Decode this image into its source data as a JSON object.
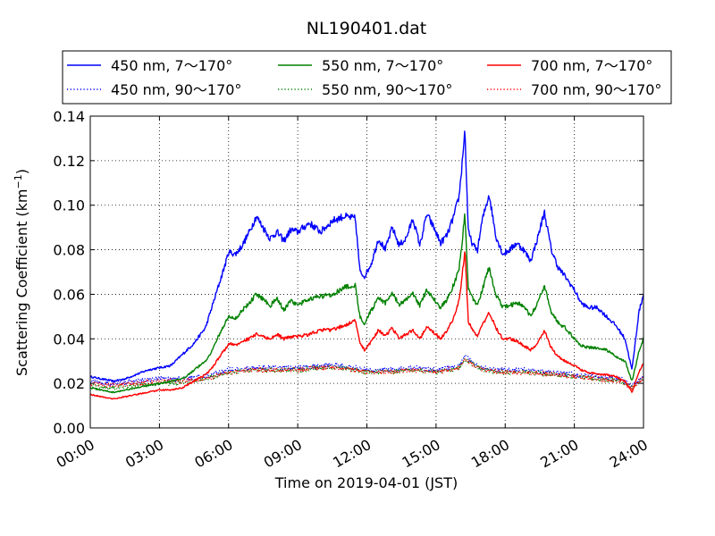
{
  "chart_data": {
    "type": "line",
    "title": "NL190401.dat",
    "xlabel": "Time on 2019-04-01 (JST)",
    "ylabel_main": "Scattering Coefficient (km",
    "ylabel_sup": "−1",
    "ylabel_end": ")",
    "xlim": [
      0,
      24
    ],
    "ylim": [
      0,
      0.14
    ],
    "xticks": [
      0,
      3,
      6,
      9,
      12,
      15,
      18,
      21,
      24
    ],
    "xtick_labels": [
      "00:00",
      "03:00",
      "06:00",
      "09:00",
      "12:00",
      "15:00",
      "18:00",
      "21:00",
      "24:00"
    ],
    "yticks": [
      0,
      0.02,
      0.04,
      0.06,
      0.08,
      0.1,
      0.12,
      0.14
    ],
    "ytick_labels": [
      "0.00",
      "0.02",
      "0.04",
      "0.06",
      "0.08",
      "0.10",
      "0.12",
      "0.14"
    ],
    "grid": true,
    "legend_position": "top-center",
    "legend_columns": 3,
    "series": [
      {
        "name": "450 nm, 7～170°",
        "color": "#0000ff",
        "style": "solid",
        "x": [
          0,
          0.5,
          1,
          1.5,
          2,
          2.5,
          3,
          3.5,
          4,
          4.5,
          5,
          5.3,
          5.6,
          5.9,
          6,
          6.3,
          6.6,
          6.9,
          7.2,
          7.5,
          7.8,
          8.1,
          8.4,
          8.7,
          9,
          9.5,
          10,
          10.5,
          11,
          11.5,
          11.7,
          11.9,
          12.2,
          12.5,
          12.8,
          13.1,
          13.4,
          13.7,
          14,
          14.3,
          14.6,
          14.9,
          15.2,
          15.5,
          15.8,
          16,
          16.1,
          16.25,
          16.4,
          16.6,
          16.8,
          17,
          17.3,
          17.6,
          17.9,
          18.2,
          18.5,
          18.8,
          19.1,
          19.4,
          19.7,
          20,
          20.3,
          20.6,
          21,
          21.3,
          21.6,
          22,
          22.4,
          22.8,
          23.2,
          23.5,
          23.8,
          24
        ],
        "values": [
          0.023,
          0.022,
          0.021,
          0.022,
          0.024,
          0.026,
          0.027,
          0.028,
          0.033,
          0.038,
          0.045,
          0.055,
          0.065,
          0.075,
          0.079,
          0.078,
          0.082,
          0.088,
          0.095,
          0.09,
          0.085,
          0.088,
          0.084,
          0.089,
          0.088,
          0.092,
          0.088,
          0.093,
          0.095,
          0.094,
          0.07,
          0.068,
          0.074,
          0.085,
          0.08,
          0.09,
          0.082,
          0.085,
          0.094,
          0.082,
          0.096,
          0.09,
          0.083,
          0.087,
          0.096,
          0.104,
          0.115,
          0.134,
          0.088,
          0.082,
          0.08,
          0.093,
          0.105,
          0.086,
          0.078,
          0.08,
          0.083,
          0.08,
          0.075,
          0.085,
          0.097,
          0.08,
          0.072,
          0.068,
          0.062,
          0.056,
          0.054,
          0.054,
          0.05,
          0.046,
          0.04,
          0.026,
          0.052,
          0.06
        ]
      },
      {
        "name": "550 nm, 7～170°",
        "color": "#008000",
        "style": "solid",
        "x": [
          0,
          0.5,
          1,
          1.5,
          2,
          2.5,
          3,
          3.5,
          4,
          4.5,
          5,
          5.3,
          5.6,
          5.9,
          6,
          6.3,
          6.6,
          6.9,
          7.2,
          7.5,
          7.8,
          8.1,
          8.4,
          8.7,
          9,
          9.5,
          10,
          10.5,
          11,
          11.5,
          11.7,
          11.9,
          12.2,
          12.5,
          12.8,
          13.1,
          13.4,
          13.7,
          14,
          14.3,
          14.6,
          14.9,
          15.2,
          15.5,
          15.8,
          16,
          16.1,
          16.25,
          16.4,
          16.6,
          16.8,
          17,
          17.3,
          17.6,
          17.9,
          18.2,
          18.5,
          18.8,
          19.1,
          19.4,
          19.7,
          20,
          20.3,
          20.6,
          21,
          21.3,
          21.6,
          22,
          22.4,
          22.8,
          23.2,
          23.5,
          23.8,
          24
        ],
        "values": [
          0.018,
          0.017,
          0.016,
          0.017,
          0.018,
          0.019,
          0.02,
          0.021,
          0.022,
          0.026,
          0.03,
          0.035,
          0.042,
          0.048,
          0.05,
          0.049,
          0.053,
          0.056,
          0.06,
          0.058,
          0.055,
          0.058,
          0.053,
          0.057,
          0.055,
          0.058,
          0.059,
          0.06,
          0.063,
          0.064,
          0.05,
          0.047,
          0.053,
          0.058,
          0.056,
          0.061,
          0.055,
          0.058,
          0.06,
          0.055,
          0.062,
          0.058,
          0.054,
          0.058,
          0.065,
          0.072,
          0.08,
          0.097,
          0.062,
          0.058,
          0.055,
          0.062,
          0.072,
          0.06,
          0.054,
          0.055,
          0.056,
          0.055,
          0.05,
          0.056,
          0.064,
          0.052,
          0.047,
          0.045,
          0.04,
          0.037,
          0.036,
          0.036,
          0.035,
          0.032,
          0.03,
          0.021,
          0.034,
          0.04
        ]
      },
      {
        "name": "700 nm, 7～170°",
        "color": "#ff0000",
        "style": "solid",
        "x": [
          0,
          0.5,
          1,
          1.5,
          2,
          2.5,
          3,
          3.5,
          4,
          4.5,
          5,
          5.3,
          5.6,
          5.9,
          6,
          6.3,
          6.6,
          6.9,
          7.2,
          7.5,
          7.8,
          8.1,
          8.4,
          8.7,
          9,
          9.5,
          10,
          10.5,
          11,
          11.5,
          11.7,
          11.9,
          12.2,
          12.5,
          12.8,
          13.1,
          13.4,
          13.7,
          14,
          14.3,
          14.6,
          14.9,
          15.2,
          15.5,
          15.8,
          16,
          16.1,
          16.25,
          16.4,
          16.6,
          16.8,
          17,
          17.3,
          17.6,
          17.9,
          18.2,
          18.5,
          18.8,
          19.1,
          19.4,
          19.7,
          20,
          20.3,
          20.6,
          21,
          21.3,
          21.6,
          22,
          22.4,
          22.8,
          23.2,
          23.5,
          23.8,
          24
        ],
        "values": [
          0.015,
          0.014,
          0.013,
          0.014,
          0.015,
          0.016,
          0.017,
          0.017,
          0.018,
          0.021,
          0.024,
          0.027,
          0.032,
          0.036,
          0.038,
          0.037,
          0.039,
          0.04,
          0.042,
          0.041,
          0.04,
          0.042,
          0.04,
          0.041,
          0.041,
          0.042,
          0.044,
          0.044,
          0.046,
          0.048,
          0.038,
          0.035,
          0.039,
          0.044,
          0.041,
          0.045,
          0.04,
          0.042,
          0.044,
          0.04,
          0.046,
          0.043,
          0.04,
          0.044,
          0.05,
          0.058,
          0.065,
          0.08,
          0.048,
          0.044,
          0.041,
          0.046,
          0.052,
          0.045,
          0.04,
          0.04,
          0.039,
          0.037,
          0.035,
          0.038,
          0.044,
          0.036,
          0.032,
          0.03,
          0.028,
          0.026,
          0.025,
          0.024,
          0.024,
          0.023,
          0.021,
          0.016,
          0.025,
          0.029
        ]
      },
      {
        "name": "450 nm, 90～170°",
        "color": "#0000ff",
        "style": "dotted",
        "x": [
          0,
          1,
          2,
          3,
          4,
          5,
          6,
          7,
          8,
          9,
          10,
          11,
          12,
          13,
          14,
          15,
          16,
          16.25,
          17,
          18,
          19,
          20,
          21,
          22,
          23,
          23.5,
          24
        ],
        "values": [
          0.021,
          0.02,
          0.021,
          0.022,
          0.022,
          0.023,
          0.026,
          0.027,
          0.027,
          0.027,
          0.028,
          0.028,
          0.026,
          0.026,
          0.027,
          0.026,
          0.028,
          0.032,
          0.027,
          0.026,
          0.026,
          0.025,
          0.024,
          0.023,
          0.022,
          0.019,
          0.023
        ]
      },
      {
        "name": "550 nm, 90～170°",
        "color": "#008000",
        "style": "dotted",
        "x": [
          0,
          1,
          2,
          3,
          4,
          5,
          6,
          7,
          8,
          9,
          10,
          11,
          12,
          13,
          14,
          15,
          16,
          16.25,
          17,
          18,
          19,
          20,
          21,
          22,
          23,
          23.5,
          24
        ],
        "values": [
          0.019,
          0.018,
          0.019,
          0.02,
          0.02,
          0.022,
          0.025,
          0.026,
          0.026,
          0.026,
          0.027,
          0.027,
          0.025,
          0.025,
          0.026,
          0.025,
          0.027,
          0.031,
          0.026,
          0.025,
          0.025,
          0.024,
          0.023,
          0.022,
          0.021,
          0.018,
          0.022
        ]
      },
      {
        "name": "700 nm, 90～170°",
        "color": "#ff0000",
        "style": "dotted",
        "x": [
          0,
          1,
          2,
          3,
          4,
          5,
          6,
          7,
          8,
          9,
          10,
          11,
          12,
          13,
          14,
          15,
          16,
          16.25,
          17,
          18,
          19,
          20,
          21,
          22,
          23,
          23.5,
          24
        ],
        "values": [
          0.02,
          0.019,
          0.02,
          0.021,
          0.021,
          0.022,
          0.025,
          0.026,
          0.026,
          0.026,
          0.027,
          0.027,
          0.025,
          0.025,
          0.026,
          0.025,
          0.027,
          0.031,
          0.026,
          0.025,
          0.025,
          0.024,
          0.023,
          0.022,
          0.021,
          0.018,
          0.022
        ]
      }
    ]
  }
}
